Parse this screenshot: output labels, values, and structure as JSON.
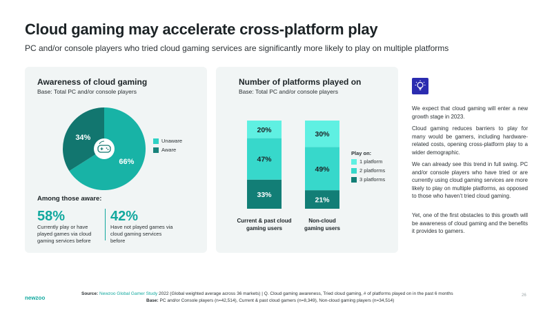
{
  "header": {
    "title": "Cloud gaming may accelerate cross-platform play",
    "subtitle": "PC and/or console players who tried cloud gaming services are significantly more likely to play on multiple platforms"
  },
  "awareness": {
    "title": "Awareness of cloud gaming",
    "base": "Base: Total PC and/or console players",
    "legend": [
      {
        "label": "Unaware",
        "color": "#2fd1c4"
      },
      {
        "label": "Aware",
        "color": "#18837b"
      }
    ],
    "among_heading": "Among those aware:",
    "stat1": {
      "value": "58%",
      "desc": "Currently play or have played games via cloud gaming services before"
    },
    "stat2": {
      "value": "42%",
      "desc": "Have not played games via cloud gaming services before"
    }
  },
  "platforms": {
    "title": "Number of platforms played on",
    "base": "Base: Total PC and/or console players",
    "legend_title": "Play on:",
    "legend": [
      {
        "label": "1 platform",
        "color": "#5ff0e2"
      },
      {
        "label": "2 platforms",
        "color": "#37d8cb"
      },
      {
        "label": "3 platforms",
        "color": "#127e76"
      }
    ]
  },
  "chart_data": [
    {
      "type": "pie",
      "title": "Awareness of cloud gaming",
      "categories": [
        "Unaware",
        "Aware"
      ],
      "values": [
        66,
        34
      ],
      "labels": [
        "66%",
        "34%"
      ],
      "colors": [
        "#18b3a6",
        "#12766f"
      ],
      "legend_position": "right"
    },
    {
      "type": "bar",
      "stacked": true,
      "title": "Number of platforms played on",
      "categories": [
        "Current & past cloud gaming users",
        "Non-cloud gaming users"
      ],
      "series": [
        {
          "name": "3 platforms",
          "values": [
            33,
            21
          ],
          "labels": [
            "33%",
            "21%"
          ],
          "color": "#127e76"
        },
        {
          "name": "2 platforms",
          "values": [
            47,
            49
          ],
          "labels": [
            "47%",
            "49%"
          ],
          "color": "#37d8cb"
        },
        {
          "name": "1 platform",
          "values": [
            20,
            30
          ],
          "labels": [
            "20%",
            "30%"
          ],
          "color": "#5ff0e2"
        }
      ],
      "ylim": [
        0,
        100
      ],
      "legend_position": "right"
    }
  ],
  "insight": {
    "icon": "lightbulb-icon",
    "p1": "We expect that cloud gaming will enter a new growth stage in 2023.",
    "p2": "Cloud gaming reduces barriers to play for many would be gamers, including hardware-related costs, opening cross-platform play to a wider demographic.",
    "p3": "We can already see this trend in full swing. PC and/or console players who have tried or are currently using cloud gaming services are more likely to play on multiple platforms, as opposed to those who haven’t tried cloud gaming.",
    "p4": "Yet, one of the first obstacles to this growth will be awareness of cloud gaming and the benefits it provides to gamers."
  },
  "footer": {
    "logo": "newzoo",
    "source_label": "Source:",
    "source_link": "Newzoo Global Gamer Study",
    "source_rest": " 2022 (Global weighted average across 36 markets)  |  Q. Cloud gaming awareness, Tried cloud gaming, # of platforms played on in the past 6 months",
    "base_label": "Base:",
    "base_rest": " PC and/or Console players (n=42,514), Current & past cloud gamers (n=8,349), Non-cloud gaming players (n=34,514)",
    "page": "26"
  }
}
